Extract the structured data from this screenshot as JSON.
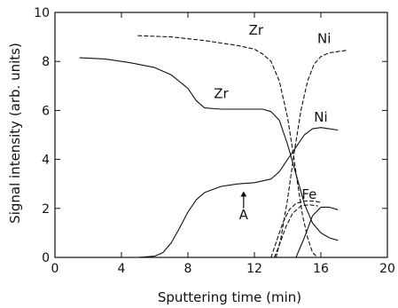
{
  "chart_data": {
    "type": "line",
    "title": "",
    "xlabel": "Sputtering time (min)",
    "ylabel": "Signal intensity (arb. units)",
    "xlim": [
      0,
      20
    ],
    "ylim": [
      0,
      10
    ],
    "xticks": [
      "0",
      "4",
      "8",
      "12",
      "16",
      "20"
    ],
    "yticks": [
      "0",
      "2",
      "4",
      "6",
      "8",
      "10"
    ],
    "grid": false,
    "legend": "none",
    "series": [
      {
        "name": "Zr",
        "style": "solid",
        "points": [
          [
            1.5,
            8.15
          ],
          [
            3,
            8.1
          ],
          [
            4.5,
            7.95
          ],
          [
            6,
            7.75
          ],
          [
            7,
            7.45
          ],
          [
            8,
            6.9
          ],
          [
            8.5,
            6.4
          ],
          [
            9,
            6.1
          ],
          [
            10,
            6.05
          ],
          [
            11,
            6.05
          ],
          [
            12.5,
            6.05
          ],
          [
            13,
            5.95
          ],
          [
            13.5,
            5.6
          ],
          [
            14,
            4.6
          ],
          [
            14.5,
            3.4
          ],
          [
            15,
            2.2
          ],
          [
            15.5,
            1.4
          ],
          [
            16,
            1.0
          ],
          [
            16.5,
            0.8
          ],
          [
            17,
            0.7
          ]
        ]
      },
      {
        "name": "Ni",
        "style": "solid",
        "points": [
          [
            5,
            0
          ],
          [
            6,
            0.05
          ],
          [
            6.5,
            0.2
          ],
          [
            7,
            0.6
          ],
          [
            7.5,
            1.2
          ],
          [
            8,
            1.85
          ],
          [
            8.5,
            2.35
          ],
          [
            9,
            2.65
          ],
          [
            10,
            2.9
          ],
          [
            11,
            3.0
          ],
          [
            12,
            3.05
          ],
          [
            13,
            3.2
          ],
          [
            13.5,
            3.5
          ],
          [
            14,
            4.0
          ],
          [
            14.5,
            4.5
          ],
          [
            15,
            5.0
          ],
          [
            15.5,
            5.25
          ],
          [
            16,
            5.3
          ],
          [
            16.5,
            5.25
          ],
          [
            17,
            5.2
          ]
        ]
      },
      {
        "name": "Fe",
        "style": "solid",
        "points": [
          [
            14.5,
            0
          ],
          [
            15,
            0.8
          ],
          [
            15.5,
            1.7
          ],
          [
            16,
            2.05
          ],
          [
            16.5,
            2.05
          ],
          [
            17,
            1.95
          ]
        ]
      },
      {
        "name": "Zr",
        "style": "dashed",
        "points": [
          [
            5,
            9.05
          ],
          [
            7,
            9.0
          ],
          [
            9,
            8.85
          ],
          [
            10,
            8.75
          ],
          [
            11,
            8.65
          ],
          [
            12,
            8.5
          ],
          [
            12.5,
            8.3
          ],
          [
            13,
            8.0
          ],
          [
            13.5,
            7.2
          ],
          [
            14,
            5.7
          ],
          [
            14.3,
            4.4
          ],
          [
            14.6,
            3.0
          ],
          [
            14.9,
            1.7
          ],
          [
            15.2,
            0.8
          ],
          [
            15.5,
            0.2
          ],
          [
            15.8,
            0
          ]
        ]
      },
      {
        "name": "Ni",
        "style": "dashed",
        "points": [
          [
            13.3,
            0
          ],
          [
            13.6,
            0.8
          ],
          [
            14,
            2.4
          ],
          [
            14.4,
            4.3
          ],
          [
            14.8,
            6.0
          ],
          [
            15.2,
            7.2
          ],
          [
            15.6,
            7.9
          ],
          [
            16,
            8.2
          ],
          [
            16.5,
            8.35
          ],
          [
            17,
            8.4
          ],
          [
            17.5,
            8.45
          ]
        ]
      },
      {
        "name": "",
        "style": "dashed",
        "points": [
          [
            13,
            0
          ],
          [
            13.3,
            0.6
          ],
          [
            13.7,
            1.4
          ],
          [
            14.1,
            1.95
          ],
          [
            14.5,
            2.2
          ],
          [
            15,
            2.3
          ],
          [
            15.5,
            2.3
          ],
          [
            16,
            2.25
          ]
        ]
      },
      {
        "name": "",
        "style": "dashed",
        "points": [
          [
            13.2,
            0
          ],
          [
            13.5,
            0.5
          ],
          [
            13.9,
            1.25
          ],
          [
            14.3,
            1.8
          ],
          [
            14.8,
            2.1
          ],
          [
            15.3,
            2.15
          ],
          [
            15.8,
            2.1
          ]
        ]
      }
    ],
    "annotations": [
      {
        "text": "Zr",
        "x": 10.0,
        "y": 6.5
      },
      {
        "text": "Ni",
        "x": 16.0,
        "y": 5.55
      },
      {
        "text": "Fe",
        "x": 15.3,
        "y": 2.4
      },
      {
        "text": "Zr",
        "x": 12.1,
        "y": 9.1
      },
      {
        "text": "Ni",
        "x": 16.2,
        "y": 8.75
      },
      {
        "text": "A",
        "x": 11.35,
        "y": 1.55
      }
    ],
    "arrow": {
      "x": 11.35,
      "y_from": 2.0,
      "y_to": 2.7
    }
  }
}
